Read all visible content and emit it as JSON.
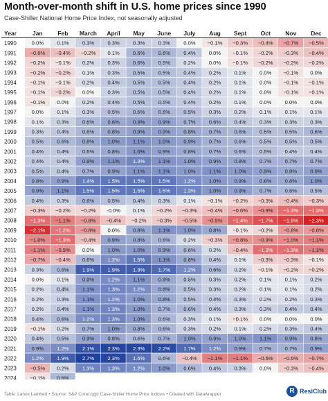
{
  "title": "Month-over-month shift in U.S. home prices since 1990",
  "subtitle": "Case-Shiller National Home Price Index, not seasonally adjusted",
  "footer": "Table: Lance Lambert • Source: S&P CoreLogic Case-Shiller Home Price Indices • Created with Datawrapper",
  "logo_text": "ResiClub",
  "logo_mark": "R",
  "colors": {
    "negative_max": "#d7191c",
    "positive_max": "#1d3f9e",
    "neutral": "#f4f4f4",
    "header_rule": "#333333"
  },
  "chart_data": {
    "type": "heatmap",
    "unit": "%",
    "columns": [
      "Year",
      "Jan",
      "Feb",
      "March",
      "April",
      "May",
      "June",
      "July",
      "Aug",
      "Sept",
      "Oct",
      "Nov",
      "Dec"
    ],
    "rows": [
      {
        "year": "1990",
        "values": [
          0.0,
          0.1,
          0.3,
          0.3,
          0.3,
          0.3,
          0.0,
          -0.1,
          -0.3,
          -0.4,
          -0.7,
          -0.5
        ]
      },
      {
        "year": "1991",
        "values": [
          -0.6,
          -0.4,
          -0.2,
          0.1,
          0.6,
          0.6,
          0.4,
          0.0,
          -0.1,
          -0.2,
          -0.3,
          -0.4
        ]
      },
      {
        "year": "1992",
        "values": [
          -0.2,
          -0.1,
          0.2,
          0.3,
          0.6,
          0.5,
          0.2,
          0.0,
          -0.1,
          -0.2,
          -0.2,
          -0.2
        ]
      },
      {
        "year": "1993",
        "values": [
          -0.2,
          -0.2,
          0.1,
          0.3,
          0.5,
          0.5,
          0.4,
          0.2,
          0.1,
          0.0,
          -0.1,
          0.0
        ]
      },
      {
        "year": "1994",
        "values": [
          -0.1,
          -0.1,
          0.2,
          0.4,
          0.5,
          0.5,
          0.4,
          0.2,
          0.1,
          0.0,
          -0.1,
          -0.1
        ]
      },
      {
        "year": "1995",
        "values": [
          -0.1,
          -0.2,
          0.0,
          0.3,
          0.5,
          0.5,
          0.4,
          0.2,
          0.1,
          0.0,
          -0.1,
          -0.1
        ]
      },
      {
        "year": "1996",
        "values": [
          -0.1,
          0.0,
          0.2,
          0.4,
          0.5,
          0.5,
          0.4,
          0.2,
          0.1,
          0.0,
          0.0,
          0.0
        ]
      },
      {
        "year": "1997",
        "values": [
          0.0,
          0.1,
          0.3,
          0.5,
          0.6,
          0.6,
          0.5,
          0.3,
          0.2,
          0.1,
          0.1,
          0.1
        ]
      },
      {
        "year": "1998",
        "values": [
          0.1,
          0.3,
          0.6,
          0.8,
          0.9,
          0.9,
          0.7,
          0.6,
          0.4,
          0.3,
          0.3,
          0.3
        ]
      },
      {
        "year": "1999",
        "values": [
          0.3,
          0.4,
          0.6,
          0.8,
          0.9,
          0.9,
          0.8,
          0.7,
          0.6,
          0.5,
          0.5,
          0.6
        ]
      },
      {
        "year": "2000",
        "values": [
          0.5,
          0.6,
          0.8,
          1.0,
          1.1,
          1.0,
          0.9,
          0.7,
          0.6,
          0.5,
          0.5,
          0.5
        ]
      },
      {
        "year": "2001",
        "values": [
          0.4,
          0.4,
          0.6,
          0.8,
          1.0,
          0.9,
          0.8,
          0.7,
          0.6,
          0.5,
          0.4,
          0.4
        ]
      },
      {
        "year": "2002",
        "values": [
          0.4,
          0.4,
          0.9,
          1.1,
          1.3,
          1.1,
          1.0,
          0.9,
          0.8,
          0.7,
          0.7,
          0.7
        ]
      },
      {
        "year": "2003",
        "values": [
          0.5,
          0.4,
          0.7,
          0.9,
          1.1,
          1.1,
          1.0,
          1.1,
          1.0,
          0.9,
          0.8,
          0.9
        ]
      },
      {
        "year": "2004",
        "values": [
          0.8,
          0.9,
          1.4,
          1.5,
          1.5,
          1.5,
          1.2,
          1.0,
          0.9,
          0.8,
          0.8,
          1.0
        ]
      },
      {
        "year": "2005",
        "values": [
          0.9,
          1.1,
          1.5,
          1.5,
          1.5,
          1.5,
          1.3,
          1.0,
          0.9,
          0.7,
          0.6,
          0.5
        ]
      },
      {
        "year": "2006",
        "values": [
          0.4,
          0.3,
          0.6,
          0.5,
          0.4,
          0.3,
          0.1,
          -0.1,
          -0.2,
          -0.3,
          -0.4,
          -0.3
        ]
      },
      {
        "year": "2007",
        "values": [
          -0.3,
          -0.2,
          -0.2,
          -0.0,
          0.1,
          -0.2,
          -0.3,
          -0.4,
          -0.6,
          -0.9,
          -1.3,
          -1.3
        ]
      },
      {
        "year": "2008",
        "values": [
          -1.3,
          -1.1,
          -0.8,
          -0.4,
          -0.2,
          -0.3,
          -0.5,
          -0.9,
          -1.4,
          -1.7,
          -1.9,
          -2.3
        ]
      },
      {
        "year": "2009",
        "values": [
          -2.1,
          -1.2,
          -0.8,
          0.0,
          0.8,
          1.1,
          1.0,
          0.8,
          -0.1,
          -0.2,
          -0.8,
          -0.8
        ]
      },
      {
        "year": "2010",
        "values": [
          -1.0,
          -1.3,
          -0.4,
          0.9,
          0.8,
          0.6,
          0.2,
          -0.3,
          -0.8,
          -0.9,
          -1.0,
          -1.1
        ]
      },
      {
        "year": "2011",
        "values": [
          -1.1,
          -0.9,
          0.0,
          1.0,
          1.0,
          0.9,
          0.6,
          0.2,
          -0.4,
          -1.3,
          -1.3,
          -1.1
        ]
      },
      {
        "year": "2012",
        "values": [
          -0.7,
          -0.4,
          0.6,
          1.2,
          1.5,
          1.1,
          0.8,
          0.4,
          0.1,
          -0.3,
          -0.3,
          -0.1
        ]
      },
      {
        "year": "2013",
        "values": [
          0.3,
          0.6,
          1.9,
          1.9,
          1.9,
          1.7,
          1.2,
          0.6,
          0.2,
          -0.1,
          -0.2,
          -0.2
        ]
      },
      {
        "year": "2014",
        "values": [
          0.0,
          0.1,
          0.9,
          1.2,
          1.1,
          0.8,
          0.5,
          0.3,
          0.2,
          0.1,
          0.1,
          0.2
        ]
      },
      {
        "year": "2015",
        "values": [
          0.2,
          0.4,
          1.1,
          1.3,
          1.2,
          0.8,
          0.5,
          0.3,
          0.2,
          0.1,
          0.1,
          0.2
        ]
      },
      {
        "year": "2016",
        "values": [
          0.2,
          0.3,
          1.1,
          1.2,
          1.0,
          0.8,
          0.5,
          0.4,
          0.3,
          0.2,
          0.2,
          0.3
        ]
      },
      {
        "year": "2017",
        "values": [
          0.2,
          0.4,
          1.1,
          1.3,
          1.0,
          0.7,
          0.6,
          0.4,
          0.3,
          0.3,
          0.4,
          0.4
        ]
      },
      {
        "year": "2018",
        "values": [
          0.4,
          0.6,
          1.2,
          1.3,
          1.0,
          0.6,
          0.3,
          0.1,
          -0.1,
          0.0,
          0.0,
          0.0
        ]
      },
      {
        "year": "2019",
        "values": [
          -0.1,
          0.2,
          0.7,
          1.0,
          0.8,
          0.6,
          0.3,
          0.2,
          0.1,
          0.2,
          0.3,
          0.4
        ]
      },
      {
        "year": "2020",
        "values": [
          0.4,
          0.5,
          0.9,
          0.8,
          0.6,
          0.7,
          1.0,
          0.9,
          1.0,
          1.1,
          0.9,
          0.8
        ]
      },
      {
        "year": "2021",
        "values": [
          0.9,
          1.2,
          2.1,
          2.3,
          2.3,
          2.2,
          1.7,
          1.2,
          0.9,
          0.7,
          0.7,
          0.9
        ]
      },
      {
        "year": "2022",
        "values": [
          1.2,
          1.9,
          2.7,
          2.3,
          1.6,
          0.6,
          -0.4,
          -1.1,
          -1.1,
          -0.6,
          -0.6,
          -0.7
        ]
      },
      {
        "year": "2023",
        "values": [
          -0.5,
          0.2,
          1.3,
          1.3,
          1.2,
          1.0,
          0.6,
          0.4,
          0.3,
          0.0,
          -0.3,
          -0.4
        ]
      },
      {
        "year": "2024",
        "values": [
          -0.1,
          0.6,
          null,
          null,
          null,
          null,
          null,
          null,
          null,
          null,
          null,
          null
        ]
      }
    ]
  }
}
